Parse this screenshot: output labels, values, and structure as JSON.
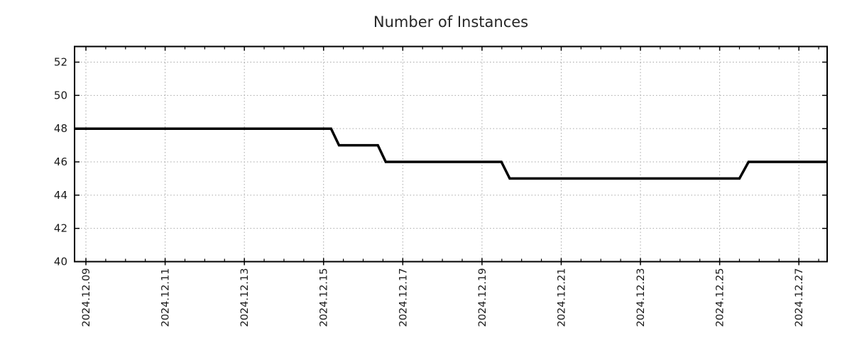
{
  "page": {
    "background_color": "#ffffff"
  },
  "chart_data": {
    "type": "line",
    "subtype": "step-time-series",
    "title": "Number of Instances",
    "legend": "none",
    "grid": "major gridlines only, dotted",
    "style": {
      "line_color": "#000000",
      "line_width": 3.5,
      "grid_color": "#a6a6a6",
      "axis_color": "#000000",
      "tick_label_color": "#1a1a1a",
      "title_color": "#262626",
      "background": "#ffffff"
    },
    "x_axis": {
      "label": "",
      "unit": "days since 2024-12-09 00:00",
      "range": [
        -0.287,
        18.714
      ],
      "major_tick_interval_days": 2,
      "minor_tick_interval_days": 0.5,
      "tick_positions": [
        0,
        2,
        4,
        6,
        8,
        10,
        12,
        14,
        16,
        18
      ],
      "tick_labels": [
        "2024.12.09",
        "2024.12.11",
        "2024.12.13",
        "2024.12.15",
        "2024.12.17",
        "2024.12.19",
        "2024.12.21",
        "2024.12.23",
        "2024.12.25",
        "2024.12.27"
      ],
      "tick_label_rotation_deg": -90
    },
    "y_axis": {
      "label": "",
      "range": [
        40,
        52.94
      ],
      "tick_values": [
        40,
        42,
        44,
        46,
        48,
        50,
        52
      ],
      "tick_labels": [
        "40",
        "42",
        "44",
        "46",
        "48",
        "50",
        "52"
      ]
    },
    "series": [
      {
        "name": "Number of Instances",
        "color": "#000000",
        "points": [
          {
            "t": -0.287,
            "time": "2024-12-08 17:00",
            "value": 48
          },
          {
            "t": 6.19,
            "time": "2024-12-15 04:30",
            "value": 48
          },
          {
            "t": 6.39,
            "time": "2024-12-15 09:30",
            "value": 47
          },
          {
            "t": 7.37,
            "time": "2024-12-16 09:00",
            "value": 47
          },
          {
            "t": 7.57,
            "time": "2024-12-16 13:30",
            "value": 46
          },
          {
            "t": 10.49,
            "time": "2024-12-19 12:00",
            "value": 46
          },
          {
            "t": 10.7,
            "time": "2024-12-19 17:00",
            "value": 45
          },
          {
            "t": 16.5,
            "time": "2024-12-25 12:00",
            "value": 45
          },
          {
            "t": 16.73,
            "time": "2024-12-25 17:30",
            "value": 46
          },
          {
            "t": 18.714,
            "time": "2024-12-27 17:00",
            "value": 46
          }
        ]
      }
    ]
  }
}
